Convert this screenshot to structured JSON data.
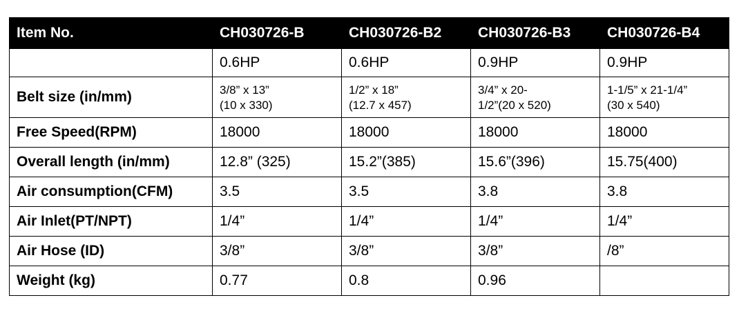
{
  "table": {
    "header": {
      "label": "Item No.",
      "models": [
        "CH030726-B",
        "CH030726-B2",
        "CH030726-B3",
        "CH030726-B4"
      ]
    },
    "rows": [
      {
        "label": "",
        "values": [
          "0.6HP",
          "0.6HP",
          "0.9HP",
          "0.9HP"
        ]
      },
      {
        "label": "Belt size (in/mm)",
        "values_line1": [
          "3/8” x 13”",
          "1/2” x 18”",
          "3/4” x 20-",
          "1-1/5” x 21-1/4”"
        ],
        "values_line2": [
          "(10 x 330)",
          "(12.7 x 457)",
          "1/2”(20 x 520)",
          "(30 x 540)"
        ]
      },
      {
        "label": "Free Speed(RPM)",
        "values": [
          "18000",
          "18000",
          "18000",
          "18000"
        ]
      },
      {
        "label": "Overall length (in/mm)",
        "values": [
          "12.8” (325)",
          "15.2”(385)",
          "15.6”(396)",
          "15.75(400)"
        ]
      },
      {
        "label": "Air consumption(CFM)",
        "values": [
          "3.5",
          "3.5",
          "3.8",
          "3.8"
        ]
      },
      {
        "label": "Air Inlet(PT/NPT)",
        "values": [
          "1/4”",
          "1/4”",
          "1/4”",
          "1/4”"
        ]
      },
      {
        "label": "Air Hose (ID)",
        "values": [
          "3/8”",
          "3/8”",
          "3/8”",
          "/8”"
        ]
      },
      {
        "label": "Weight (kg)",
        "values": [
          "0.77",
          "0.8",
          "0.96",
          ""
        ]
      }
    ]
  }
}
